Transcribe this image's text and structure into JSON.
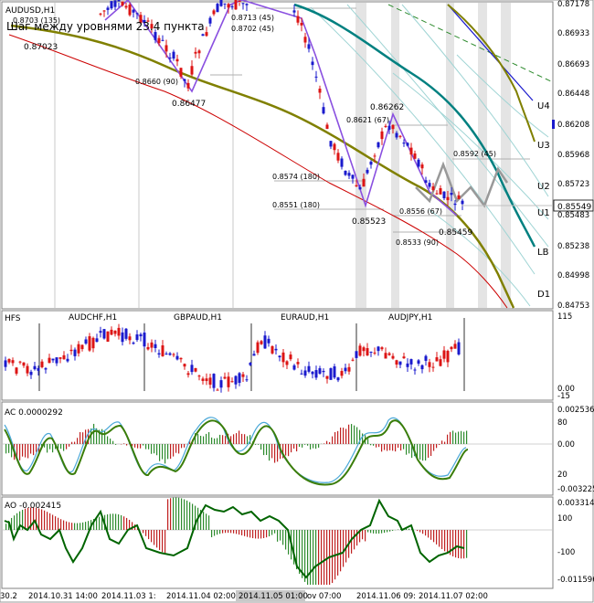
{
  "main": {
    "symbol": "AUDUSD,H1",
    "subtitle": "Шаг между уровнями 23.4 пункта",
    "price_axis": [
      "0.87178",
      "0.86933",
      "0.86693",
      "0.86448",
      "0.86208",
      "0.85968",
      "0.85723",
      "0.85483",
      "0.85238",
      "0.84998",
      "0.84753"
    ],
    "current_price": "0.85549",
    "levels": [
      "U4",
      "U3",
      "U2",
      "U1",
      "LB",
      "D1"
    ],
    "annotations": {
      "a0": "0.8703 (135)",
      "a1": "0.87023",
      "a2": "0.8713 (45)",
      "a3": "0.8702 (45)",
      "a4": "0.8660 (90)",
      "a5": "0.86477",
      "a6": "0.86262",
      "a7": "0.8621 (67)",
      "a8": "0.8574 (180)",
      "a9": "0.8592 (45)",
      "a10": "0.8551 (180)",
      "a11": "0.8556 (67)",
      "a12": "0.85523",
      "a13": "0.8533 (90)",
      "a14": "0.85459"
    }
  },
  "panel1": {
    "title": "HFS",
    "pairs": [
      "AUDCHF,H1",
      "GBPAUD,H1",
      "EURAUD,H1",
      "AUDJPY,H1"
    ],
    "axis": [
      "115",
      "0.00",
      "-15"
    ]
  },
  "panel2": {
    "title": "AC 0.0000292",
    "axis_right": [
      "0.002536",
      "80",
      "0.00",
      "20",
      "-0.003225"
    ]
  },
  "panel3": {
    "title": "AO -0.002415",
    "axis_right": [
      "0.003314",
      "100",
      "-100",
      "-0.011596"
    ]
  },
  "time_axis": [
    "30.2",
    "2014.10.31 14:00",
    "2014.11.03 1:",
    "2014.11.04 02:00",
    "2014.11.05 01:00",
    "ov 07:00",
    "2014.11.06 09:",
    "2014.11.07 02:00"
  ],
  "colors": {
    "bull": "#1a1acd",
    "bear": "#dc1414",
    "olive": "#808000",
    "teal": "#008080",
    "ma_red": "#cc0000",
    "green": "#006400"
  }
}
